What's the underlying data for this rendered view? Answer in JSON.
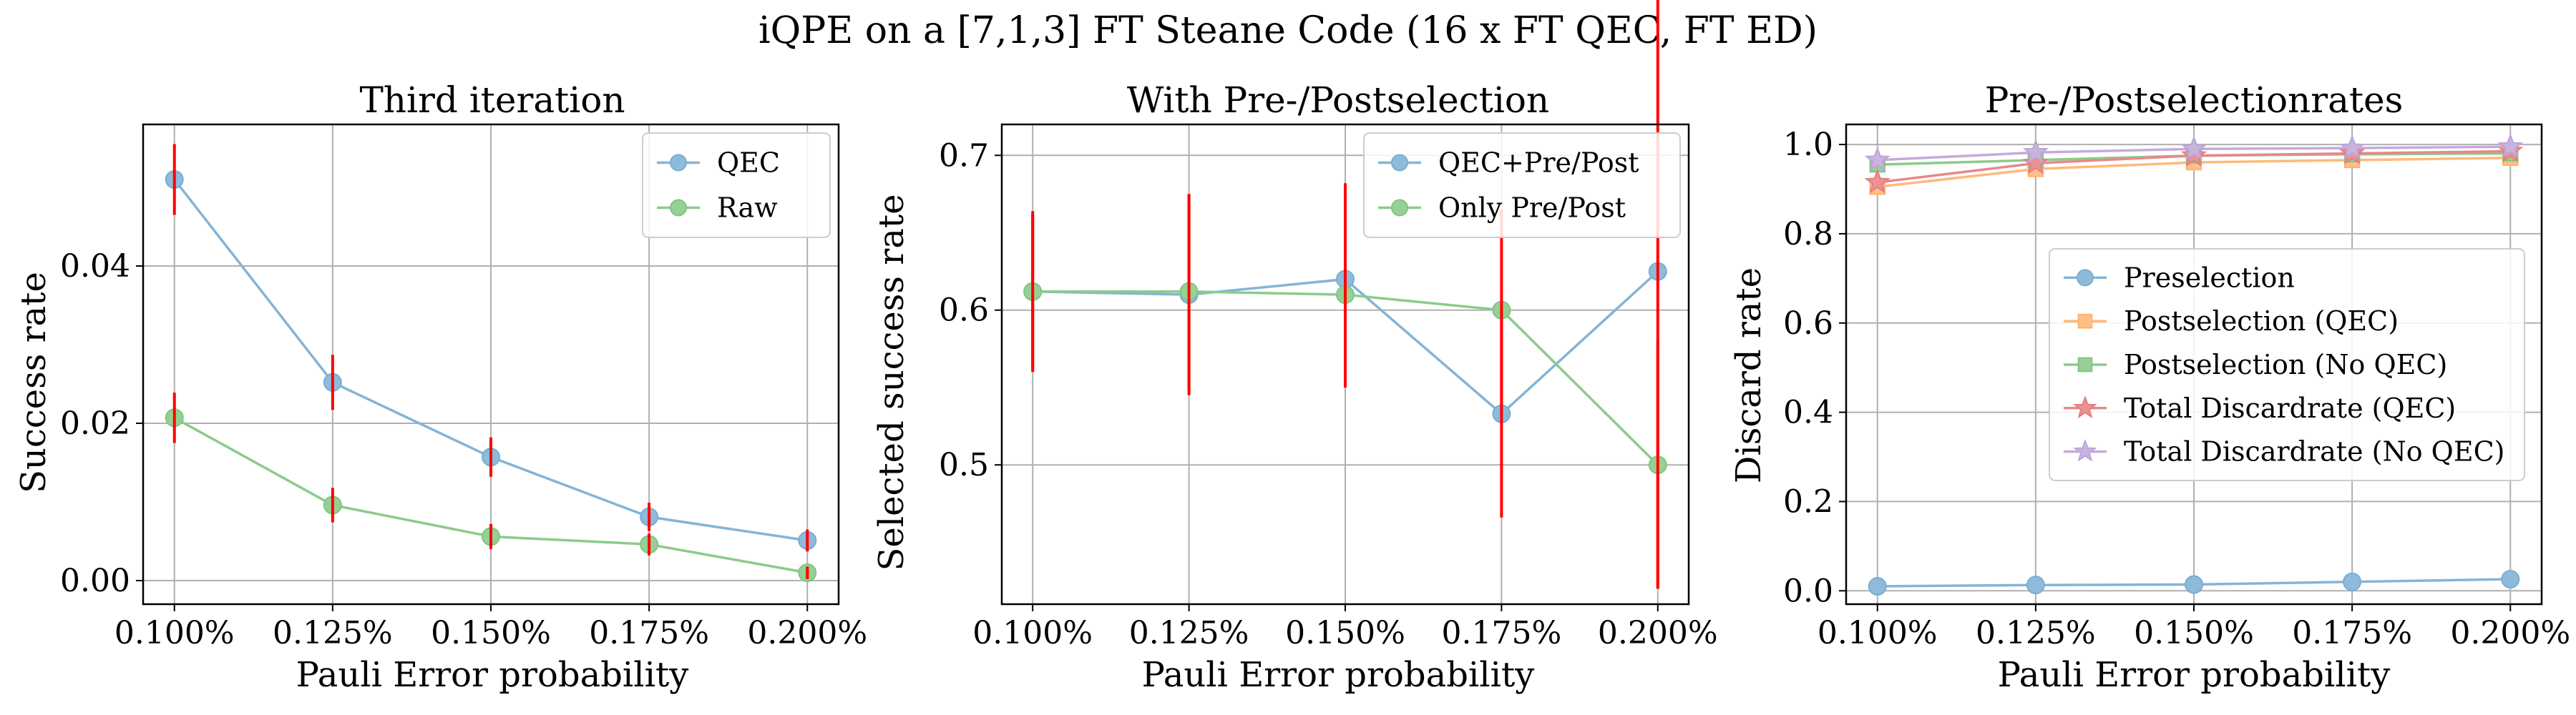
{
  "figure": {
    "suptitle": "iQPE on a [7,1,3] FT Steane Code (16 x FT QEC, FT ED)"
  },
  "chart_data": [
    {
      "type": "line",
      "title": "Third iteration",
      "xlabel": "Pauli Error probability",
      "ylabel": "Success rate",
      "x": [
        "0.100%",
        "0.125%",
        "0.150%",
        "0.175%",
        "0.200%"
      ],
      "ylim": [
        -0.003,
        0.058
      ],
      "yticks": [
        0.0,
        0.02,
        0.04
      ],
      "ytick_labels": [
        "0.00",
        "0.02",
        "0.04"
      ],
      "grid": true,
      "legend": "upper right",
      "series": [
        {
          "name": "QEC",
          "color": "#1f77b4",
          "marker": "o",
          "values": [
            0.051,
            0.0252,
            0.0157,
            0.0081,
            0.0051
          ],
          "err": [
            0.0045,
            0.0035,
            0.0025,
            0.0018,
            0.0014
          ]
        },
        {
          "name": "Raw",
          "color": "#2ca02c",
          "marker": "o",
          "values": [
            0.0207,
            0.0096,
            0.0056,
            0.0046,
            0.001
          ],
          "err": [
            0.0032,
            0.0022,
            0.0016,
            0.0014,
            0.0008
          ]
        }
      ]
    },
    {
      "type": "line",
      "title": "With Pre-/Postselection",
      "xlabel": "Pauli Error probability",
      "ylabel": "Selected success rate",
      "x": [
        "0.100%",
        "0.125%",
        "0.150%",
        "0.175%",
        "0.200%"
      ],
      "ylim": [
        0.41,
        0.72
      ],
      "yticks": [
        0.5,
        0.6,
        0.7
      ],
      "ytick_labels": [
        "0.5",
        "0.6",
        "0.7"
      ],
      "grid": true,
      "legend": "upper right",
      "series": [
        {
          "name": "QEC+Pre/Post",
          "color": "#1f77b4",
          "marker": "o",
          "values": [
            0.612,
            0.61,
            0.62,
            0.533,
            0.625
          ],
          "err": [
            0.052,
            0.065,
            0.062,
            0.067,
            0.205
          ]
        },
        {
          "name": "Only Pre/Post",
          "color": "#2ca02c",
          "marker": "o",
          "values": [
            0.612,
            0.612,
            0.61,
            0.6,
            0.5
          ],
          "err": [
            0.05,
            0.063,
            0.06,
            0.065,
            0.08
          ]
        }
      ]
    },
    {
      "type": "line",
      "title": "Pre-/Postselectionrates",
      "xlabel": "Pauli Error probability",
      "ylabel": "Discard rate",
      "x": [
        "0.100%",
        "0.125%",
        "0.150%",
        "0.175%",
        "0.200%"
      ],
      "ylim": [
        -0.03,
        1.045
      ],
      "yticks": [
        0.0,
        0.2,
        0.4,
        0.6,
        0.8,
        1.0
      ],
      "ytick_labels": [
        "0.0",
        "0.2",
        "0.4",
        "0.6",
        "0.8",
        "1.0"
      ],
      "grid": true,
      "legend": "center right",
      "series": [
        {
          "name": "Preselection",
          "color": "#1f77b4",
          "marker": "o",
          "values": [
            0.01,
            0.013,
            0.014,
            0.02,
            0.026
          ]
        },
        {
          "name": "Postselection (QEC)",
          "color": "#ff7f0e",
          "marker": "s",
          "values": [
            0.905,
            0.945,
            0.96,
            0.965,
            0.97
          ]
        },
        {
          "name": "Postselection (No QEC)",
          "color": "#2ca02c",
          "marker": "s",
          "values": [
            0.955,
            0.965,
            0.975,
            0.978,
            0.98
          ]
        },
        {
          "name": "Total Discardrate (QEC)",
          "color": "#d62728",
          "marker": "*",
          "values": [
            0.915,
            0.958,
            0.975,
            0.98,
            0.985
          ]
        },
        {
          "name": "Total Discardrate (No QEC)",
          "color": "#9467bd",
          "marker": "*",
          "values": [
            0.965,
            0.982,
            0.99,
            0.992,
            0.995
          ]
        }
      ]
    }
  ]
}
